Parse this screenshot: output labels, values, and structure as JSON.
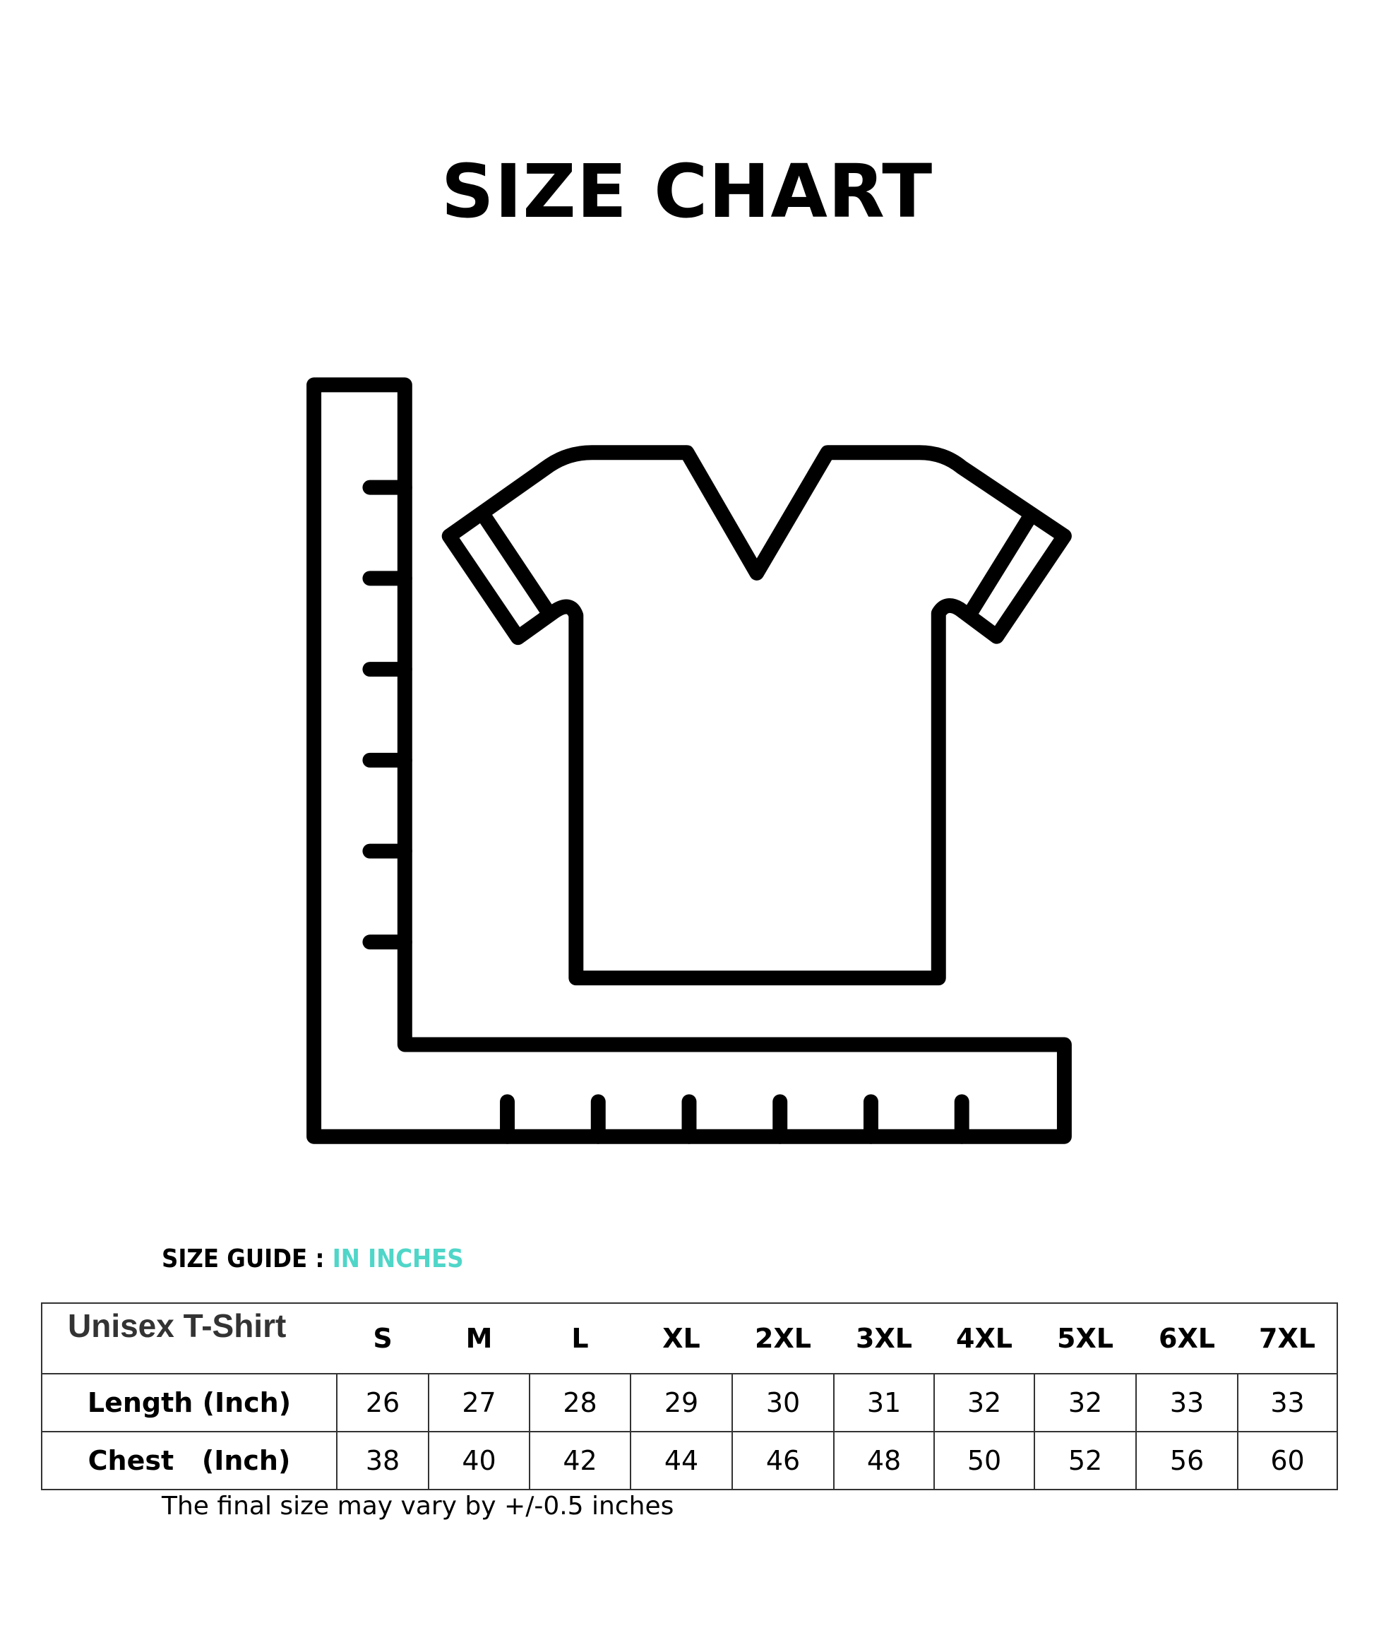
{
  "title": "SIZE CHART",
  "guide": {
    "label": "SIZE GUIDE : ",
    "unit": "IN INCHES",
    "accent_color": "#4fd6c8"
  },
  "table": {
    "corner": "Unisex T-Shirt",
    "sizes": [
      "S",
      "M",
      "L",
      "XL",
      "2XL",
      "3XL",
      "4XL",
      "5XL",
      "6XL",
      "7XL"
    ],
    "rows": [
      {
        "label": "Length (Inch)",
        "values": [
          "26",
          "27",
          "28",
          "29",
          "30",
          "31",
          "32",
          "32",
          "33",
          "33"
        ]
      },
      {
        "label": "Chest   (Inch)",
        "values": [
          "38",
          "40",
          "42",
          "44",
          "46",
          "48",
          "50",
          "52",
          "56",
          "60"
        ]
      }
    ]
  },
  "note": "The final size may vary by +/-0.5 inches",
  "illustration": {
    "icon": "tshirt-with-ruler-icon"
  }
}
